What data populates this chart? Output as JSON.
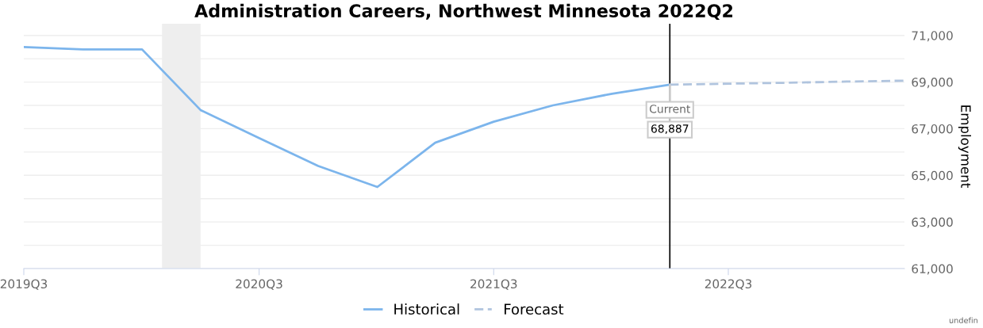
{
  "chart_data": {
    "type": "line",
    "title": "Administration Careers, Northwest Minnesota 2022Q2",
    "ylabel": "Employment",
    "x": [
      "2019-07",
      "2019-10",
      "2020-01",
      "2020-04",
      "2020-07",
      "2020-10",
      "2021-01",
      "2021-04",
      "2021-07",
      "2021-10",
      "2022-01",
      "2022-04"
    ],
    "series": [
      {
        "name": "Historical",
        "color": "#7cb5ec",
        "line_style": "solid",
        "values": [
          70500,
          70400,
          70400,
          67800,
          66600,
          65400,
          64500,
          66400,
          67300,
          68000,
          68500,
          68887
        ]
      },
      {
        "name": "Forecast",
        "color": "#b0c4de",
        "line_style": "dashed",
        "x": [
          "2022-04",
          "2022-07",
          "2022-10",
          "2023-01",
          "2023-04"
        ],
        "values": [
          68887,
          68930,
          68970,
          69020,
          69060
        ]
      }
    ],
    "xlim": [
      "2019-07",
      "2023-04"
    ],
    "xticks": [
      {
        "value": "2019-07",
        "label": "2019Q3"
      },
      {
        "value": "2020-07",
        "label": "2020Q3"
      },
      {
        "value": "2021-07",
        "label": "2021Q3"
      },
      {
        "value": "2022-07",
        "label": "2022Q3"
      }
    ],
    "ylim": [
      61000,
      71500
    ],
    "yticks": [
      {
        "value": 61000,
        "label": "61,000"
      },
      {
        "value": 62000,
        "label": null
      },
      {
        "value": 63000,
        "label": "63,000"
      },
      {
        "value": 64000,
        "label": null
      },
      {
        "value": 65000,
        "label": "65,000"
      },
      {
        "value": 66000,
        "label": null
      },
      {
        "value": 67000,
        "label": "67,000"
      },
      {
        "value": 68000,
        "label": null
      },
      {
        "value": 69000,
        "label": "69,000"
      },
      {
        "value": 70000,
        "label": null
      },
      {
        "value": 71000,
        "label": "71,000"
      }
    ],
    "bands": [
      {
        "axis": "x",
        "from": "2020-02",
        "to": "2020-04",
        "color": "#eeeeee"
      }
    ],
    "ref_lines": [
      {
        "axis": "x",
        "value": "2022-04",
        "label": "Current",
        "color": "#000000"
      }
    ],
    "annotations": [
      {
        "text": "68,887",
        "x": "2022-04",
        "y": 68887
      },
      "undefin"
    ],
    "grid": "y",
    "legend": "bottom",
    "marker": "none"
  }
}
